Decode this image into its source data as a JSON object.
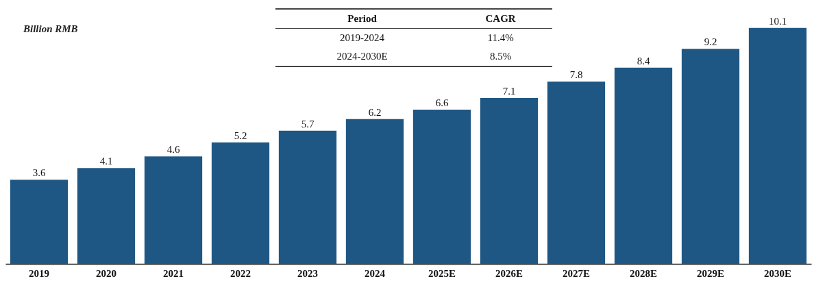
{
  "chart_data": {
    "type": "bar",
    "ylabel": "Billion RMB",
    "categories": [
      "2019",
      "2020",
      "2021",
      "2022",
      "2023",
      "2024",
      "2025E",
      "2026E",
      "2027E",
      "2028E",
      "2029E",
      "2030E"
    ],
    "values": [
      3.6,
      4.1,
      4.6,
      5.2,
      5.7,
      6.2,
      6.6,
      7.1,
      7.8,
      8.4,
      9.2,
      10.1
    ],
    "color": "#1f5784",
    "data_labels": true,
    "annotations": [
      "Period",
      "CAGR",
      "2019-2024",
      "11.4%",
      "2024-2030E",
      "8.5%"
    ]
  }
}
